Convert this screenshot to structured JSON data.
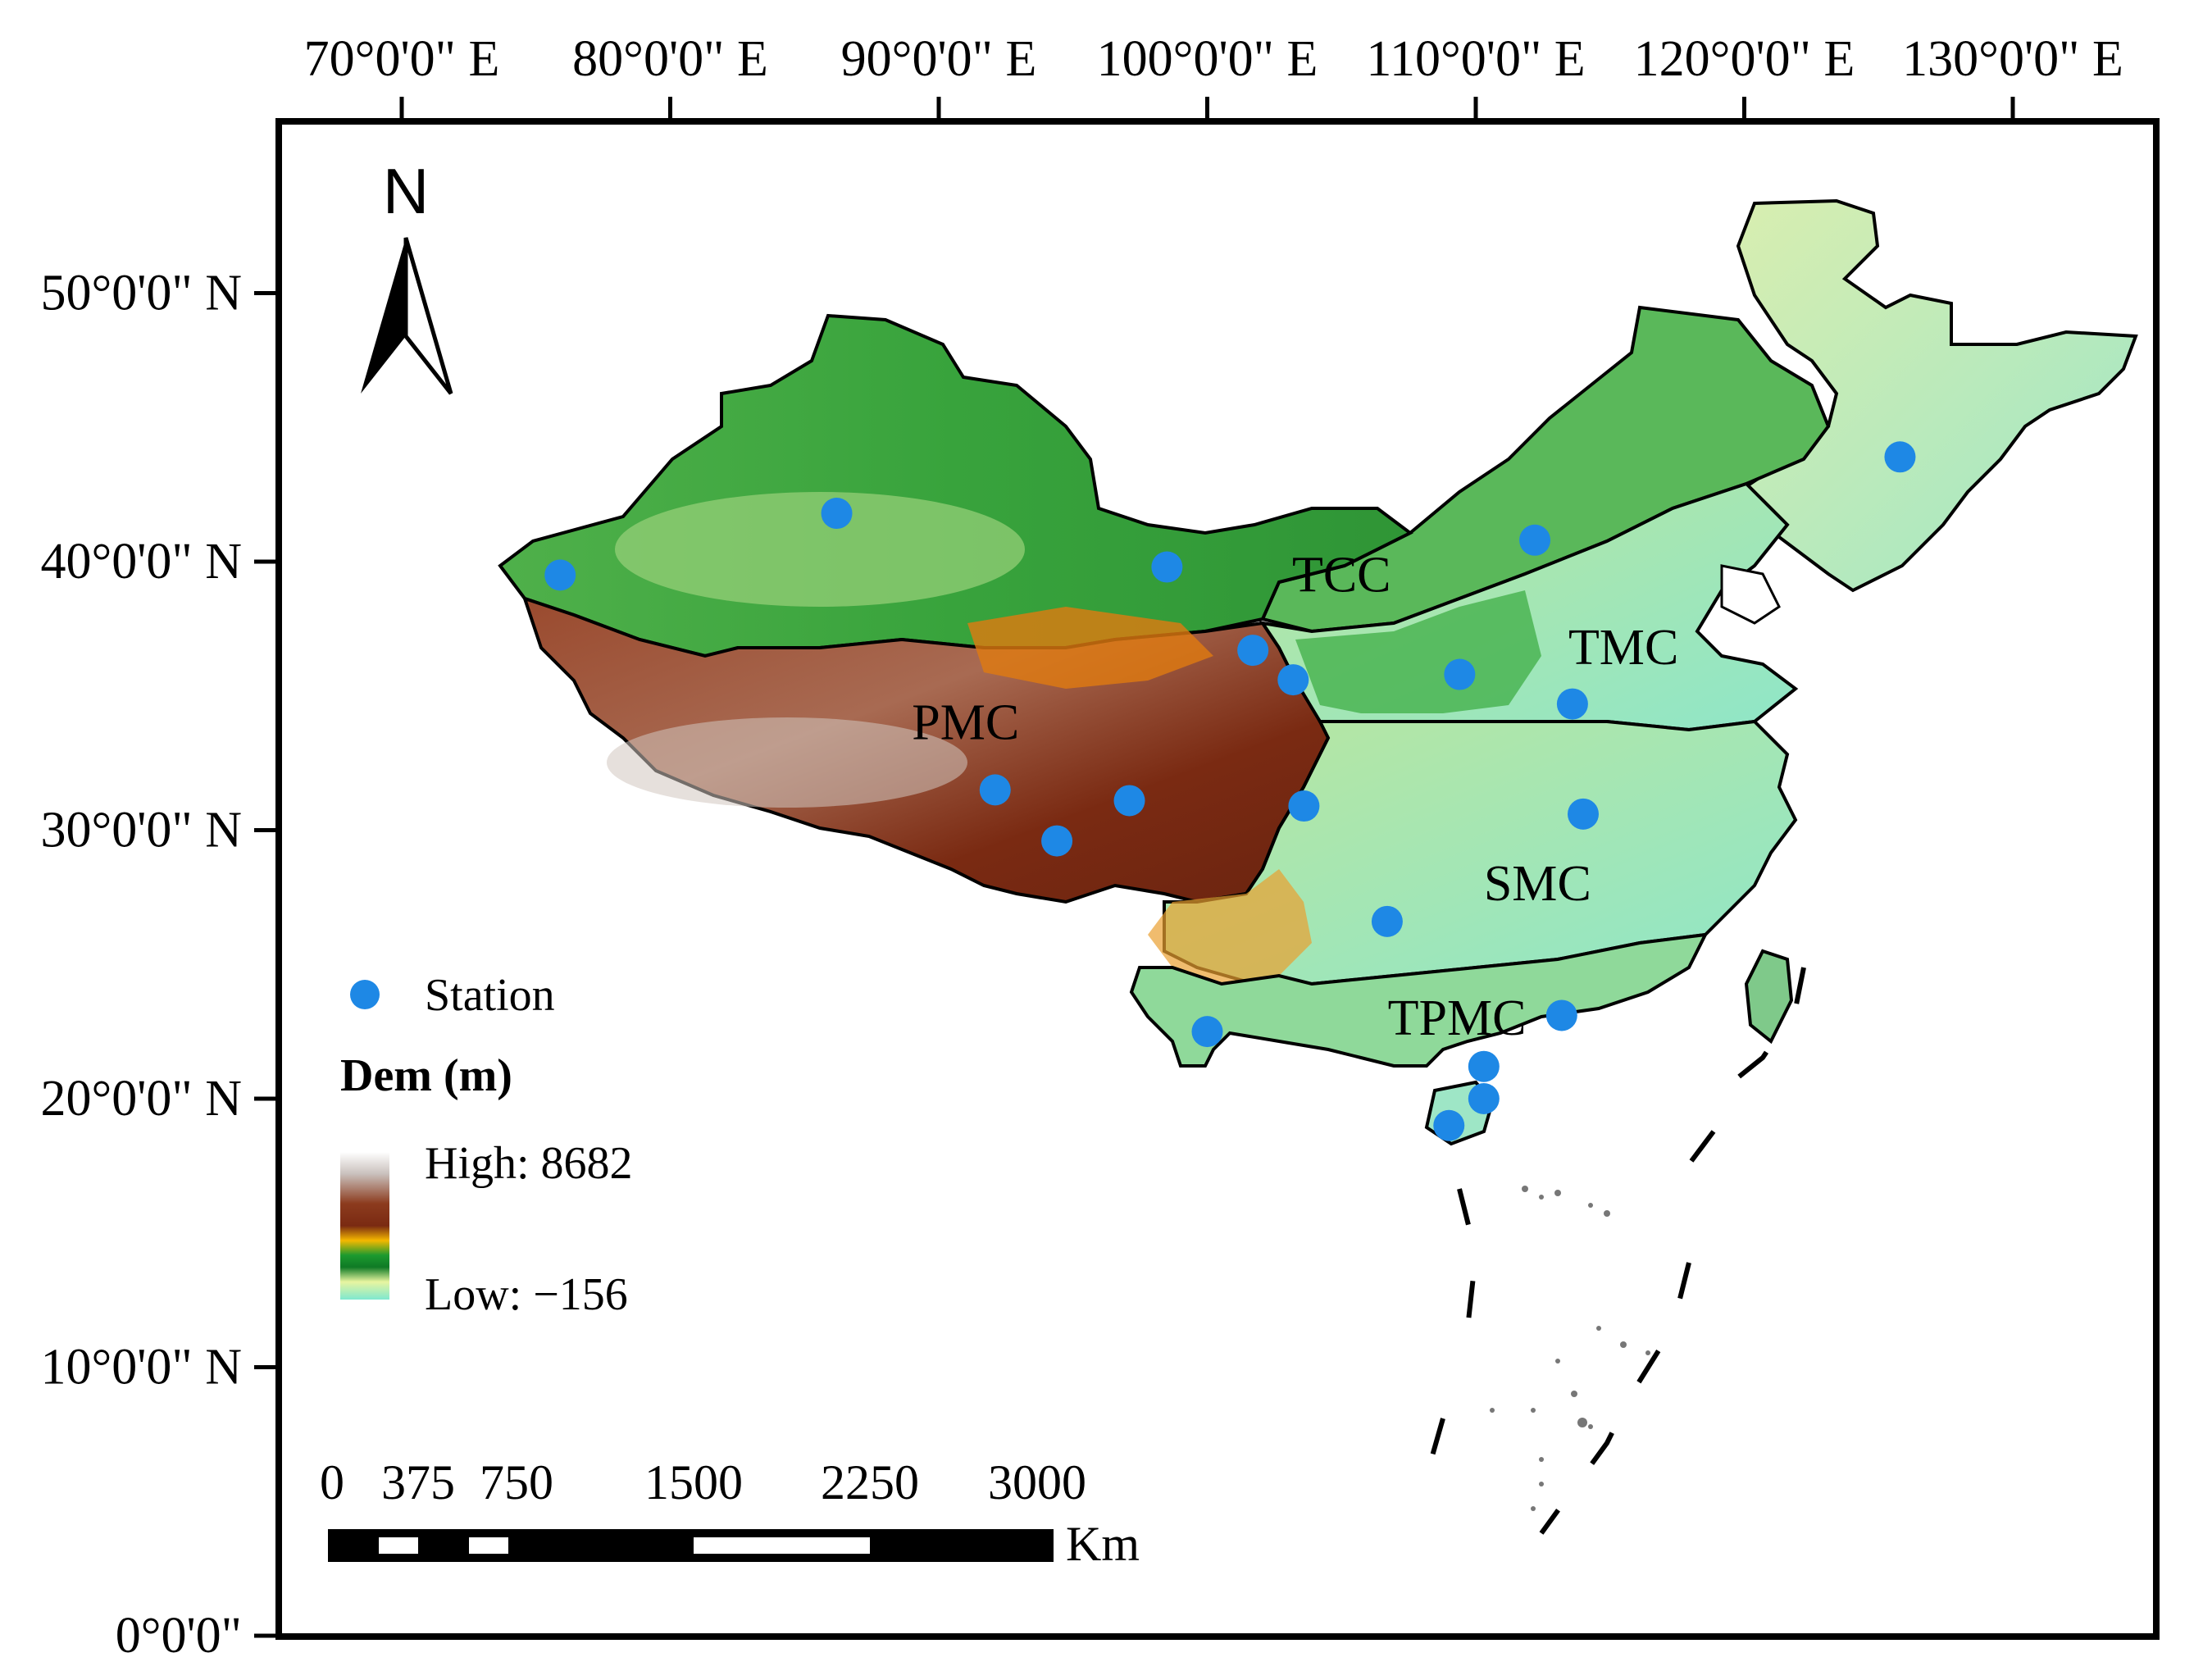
{
  "map": {
    "lon_ticks": [
      {
        "lon": 70,
        "label": "70°0'0\" E"
      },
      {
        "lon": 80,
        "label": "80°0'0\" E"
      },
      {
        "lon": 90,
        "label": "90°0'0\" E"
      },
      {
        "lon": 100,
        "label": "100°0'0\" E"
      },
      {
        "lon": 110,
        "label": "110°0'0\" E"
      },
      {
        "lon": 120,
        "label": "120°0'0\" E"
      },
      {
        "lon": 130,
        "label": "130°0'0\" E"
      }
    ],
    "lat_ticks": [
      {
        "lat": 50,
        "label": "50°0'0\" N"
      },
      {
        "lat": 40,
        "label": "40°0'0\" N"
      },
      {
        "lat": 30,
        "label": "30°0'0\" N"
      },
      {
        "lat": 20,
        "label": "20°0'0\" N"
      },
      {
        "lat": 10,
        "label": "10°0'0\" N"
      },
      {
        "lat": 0,
        "label": "0°0'0\""
      }
    ],
    "regions": [
      {
        "label": "TCC",
        "lon": 105.0,
        "lat": 39.5
      },
      {
        "label": "TMC",
        "lon": 115.5,
        "lat": 36.8
      },
      {
        "label": "PMC",
        "lon": 91.0,
        "lat": 34.0
      },
      {
        "label": "SMC",
        "lon": 112.3,
        "lat": 28.0
      },
      {
        "label": "TPMC",
        "lon": 109.3,
        "lat": 23.0
      }
    ],
    "stations": [
      {
        "lon": 75.9,
        "lat": 39.5
      },
      {
        "lon": 86.2,
        "lat": 41.8
      },
      {
        "lon": 98.5,
        "lat": 39.8
      },
      {
        "lon": 101.7,
        "lat": 36.7
      },
      {
        "lon": 103.2,
        "lat": 35.6
      },
      {
        "lon": 112.2,
        "lat": 40.8
      },
      {
        "lon": 109.4,
        "lat": 35.8
      },
      {
        "lon": 113.6,
        "lat": 34.7
      },
      {
        "lon": 125.8,
        "lat": 43.9
      },
      {
        "lon": 92.1,
        "lat": 31.5
      },
      {
        "lon": 97.1,
        "lat": 31.1
      },
      {
        "lon": 94.4,
        "lat": 29.6
      },
      {
        "lon": 103.6,
        "lat": 30.9
      },
      {
        "lon": 114.0,
        "lat": 30.6
      },
      {
        "lon": 106.7,
        "lat": 26.6
      },
      {
        "lon": 100.0,
        "lat": 22.5
      },
      {
        "lon": 113.2,
        "lat": 23.1
      },
      {
        "lon": 110.3,
        "lat": 21.2
      },
      {
        "lon": 110.3,
        "lat": 20.0
      },
      {
        "lon": 109.0,
        "lat": 19.0
      }
    ],
    "station_color": "#1e88e5",
    "north_label": "N",
    "legend": {
      "station_label": "Station",
      "dem_title": "Dem (m)",
      "high_label": "High: 8682",
      "low_label": "Low: −156",
      "ramp_colors": [
        "#ffffff",
        "#c8c0bc",
        "#8c3b1e",
        "#7a2a12",
        "#f5b800",
        "#1c9a2f",
        "#0f7a25",
        "#e8f5a0",
        "#7fe8cf"
      ]
    },
    "scale_bar": {
      "labels": [
        "0",
        "375",
        "750",
        "1500",
        "2250",
        "3000"
      ],
      "unit": "Km"
    }
  }
}
